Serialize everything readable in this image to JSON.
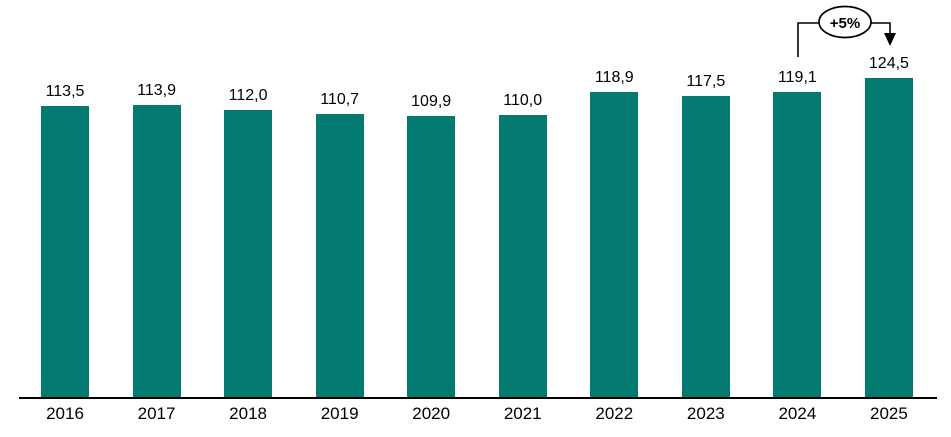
{
  "chart_data": {
    "type": "bar",
    "title": "",
    "xlabel": "",
    "ylabel": "",
    "categories": [
      "2016",
      "2017",
      "2018",
      "2019",
      "2020",
      "2021",
      "2022",
      "2023",
      "2024",
      "2025"
    ],
    "values": [
      113.5,
      113.9,
      112.0,
      110.7,
      109.9,
      110.0,
      118.9,
      117.5,
      119.1,
      124.5
    ],
    "value_labels": [
      "113,5",
      "113,9",
      "112,0",
      "110,7",
      "109,9",
      "110,0",
      "118,9",
      "117,5",
      "119,1",
      "124,5"
    ],
    "ylim": [
      0,
      135
    ],
    "grid": false,
    "legend": false,
    "decimal_separator": ",",
    "bar_color": "#027A70",
    "axis_color": "#000000",
    "label_color": "#000000",
    "annotation": {
      "label": "+5%",
      "from_category": "2024",
      "to_category": "2025",
      "shape": "ellipse",
      "fill": "#ffffff",
      "stroke": "#000000"
    }
  }
}
